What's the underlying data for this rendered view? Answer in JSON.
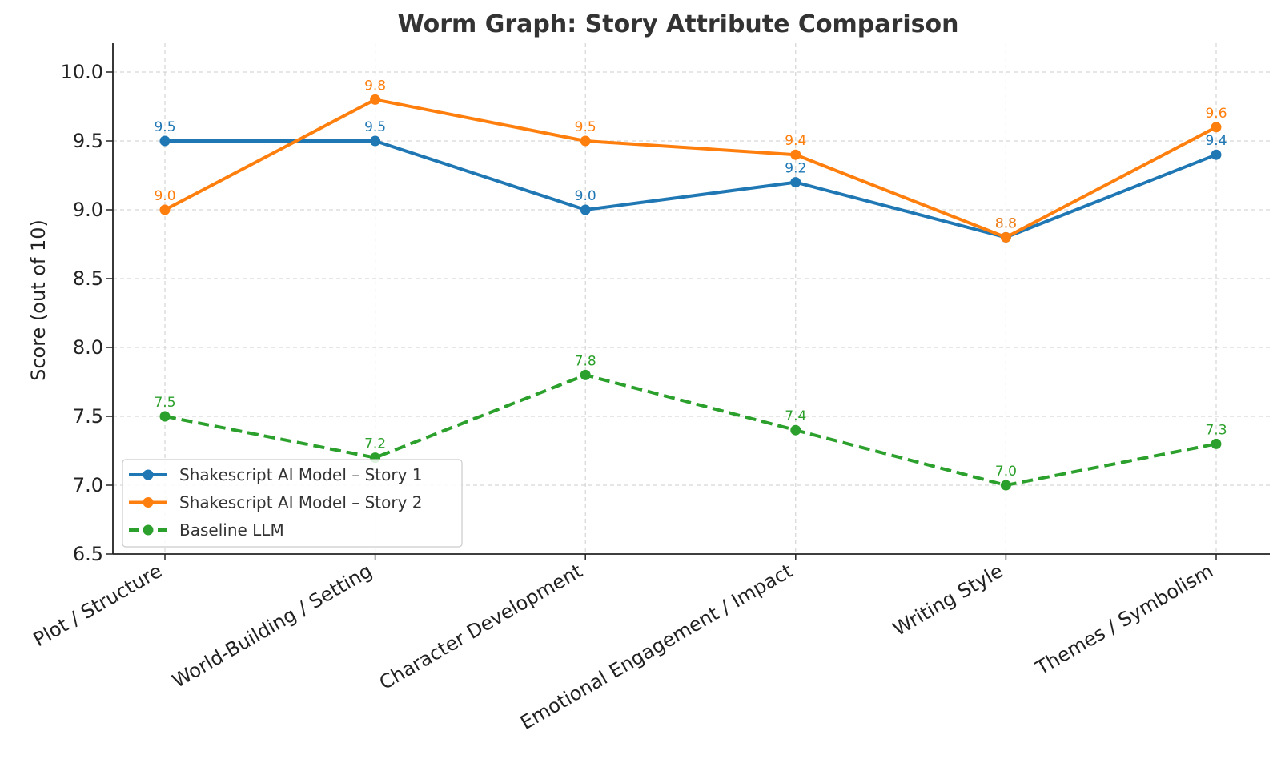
{
  "chart_data": {
    "type": "line",
    "title": "Worm Graph: Story Attribute Comparison",
    "xlabel": "",
    "ylabel": "Score (out of 10)",
    "categories": [
      "Plot / Structure",
      "World-Building / Setting",
      "Character Development",
      "Emotional Engagement / Impact",
      "Writing Style",
      "Themes / Symbolism"
    ],
    "ylim": [
      6.5,
      10.2
    ],
    "yticks": [
      "6.5",
      "7.0",
      "7.5",
      "8.0",
      "8.5",
      "9.0",
      "9.5",
      "10.0"
    ],
    "grid": true,
    "legend_position": "lower-left",
    "series": [
      {
        "name": "Shakescript AI Model – Story 1",
        "values": [
          9.5,
          9.5,
          9.0,
          9.2,
          8.8,
          9.4
        ],
        "labels": [
          "9.5",
          "9.5",
          "9.0",
          "9.2",
          "8.8",
          "9.4"
        ],
        "color": "#1f77b4",
        "style": "solid",
        "marker": "circle"
      },
      {
        "name": "Shakescript AI Model – Story 2",
        "values": [
          9.0,
          9.8,
          9.5,
          9.4,
          8.8,
          9.6
        ],
        "labels": [
          "9.0",
          "9.8",
          "9.5",
          "9.4",
          "8.8",
          "9.6"
        ],
        "color": "#ff7f0e",
        "style": "solid",
        "marker": "circle"
      },
      {
        "name": "Baseline LLM",
        "values": [
          7.5,
          7.2,
          7.8,
          7.4,
          7.0,
          7.3
        ],
        "labels": [
          "7.5",
          "7.2",
          "7.8",
          "7.4",
          "7.0",
          "7.3"
        ],
        "color": "#2ca02c",
        "style": "dashed",
        "marker": "circle"
      }
    ]
  }
}
